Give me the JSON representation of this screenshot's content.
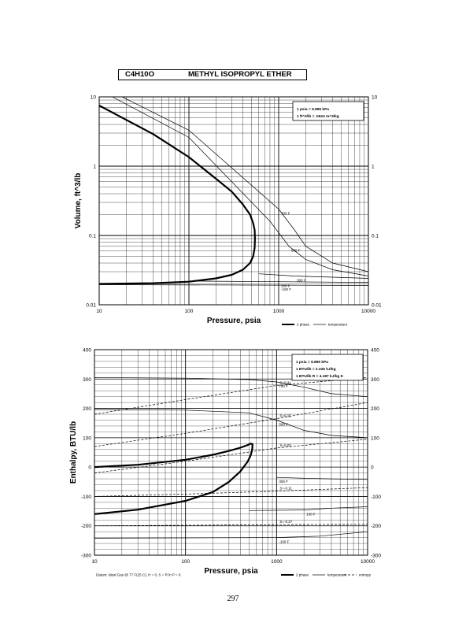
{
  "header": {
    "formula": "C4H10O",
    "name": "METHYL ISOPROPYL ETHER"
  },
  "page_number": "297",
  "chart_data": [
    {
      "type": "line",
      "xlabel": "Pressure, psia",
      "ylabel": "Volume, ft^3/lb",
      "x_scale": "log",
      "y_scale": "log",
      "xlim": [
        10,
        10000
      ],
      "ylim": [
        0.01,
        10
      ],
      "x_ticks": [
        "10",
        "100",
        "1000",
        "10000"
      ],
      "y_ticks": [
        "0.01",
        "0.1",
        "1",
        "10"
      ],
      "y_ticks_right": [
        "0.01",
        "0.1",
        "1",
        "10"
      ],
      "grid": true,
      "conversion_box": [
        "1 psia = 6.895 kPa",
        "1 ft^3/lb = .0624 m^3/kg"
      ],
      "legend": [
        "2 phase",
        "temperature"
      ],
      "two_phase": {
        "name": "2 phase",
        "x": [
          10,
          40,
          100,
          200,
          300,
          400,
          480,
          520,
          540,
          545,
          540,
          520,
          480,
          400,
          300,
          200,
          100,
          40,
          10
        ],
        "y": [
          7.5,
          2.9,
          1.35,
          0.66,
          0.43,
          0.28,
          0.2,
          0.15,
          0.12,
          0.09,
          0.066,
          0.05,
          0.04,
          0.032,
          0.027,
          0.024,
          0.0215,
          0.0205,
          0.02
        ]
      },
      "temperature_series": [
        {
          "name": "700 F",
          "x": [
            18,
            100,
            1000,
            1500,
            2000,
            4000,
            10000
          ],
          "y": [
            10,
            3.3,
            0.24,
            0.12,
            0.07,
            0.04,
            0.03
          ]
        },
        {
          "name": "500 F",
          "x": [
            14,
            100,
            800,
            1300,
            2000,
            4000,
            10000
          ],
          "y": [
            10,
            2.6,
            0.16,
            0.07,
            0.045,
            0.032,
            0.026
          ]
        },
        {
          "name": "300 F",
          "x": [
            600,
            1500,
            4000,
            10000
          ],
          "y": [
            0.028,
            0.026,
            0.025,
            0.024
          ]
        },
        {
          "name": "100 F",
          "x": [
            100,
            1000,
            10000
          ],
          "y": [
            0.022,
            0.0215,
            0.021
          ]
        },
        {
          "name": "-100 F",
          "x": [
            10,
            1000,
            10000
          ],
          "y": [
            0.0195,
            0.0192,
            0.019
          ]
        }
      ]
    },
    {
      "type": "line",
      "xlabel": "Pressure, psia",
      "ylabel": "Enthalpy, BTU/lb",
      "x_scale": "log",
      "xlim": [
        10,
        10000
      ],
      "ylim": [
        -300,
        400
      ],
      "x_ticks": [
        "10",
        "100",
        "1000",
        "10000"
      ],
      "y_ticks": [
        "-300",
        "-200",
        "-100",
        "0",
        "100",
        "200",
        "300",
        "400"
      ],
      "grid": true,
      "conversion_box": [
        "1 psia = 6.895 kPa",
        "1 BTU/lb = 2.326 kJ/kg",
        "1 BTU/lb R = 4.187 kJ/kg K"
      ],
      "legend": [
        "2 phase",
        "temperature",
        "entropy"
      ],
      "footnote": "Datum: Ideal Gas @ 77 F(25 C), H = 0, S = R ln P = 0",
      "two_phase": {
        "name": "2 phase",
        "x": [
          10,
          30,
          100,
          200,
          300,
          400,
          480,
          520,
          545,
          540,
          520,
          480,
          400,
          300,
          200,
          100,
          30,
          10
        ],
        "y": [
          0,
          8,
          25,
          42,
          55,
          66,
          75,
          80,
          78,
          60,
          40,
          18,
          -15,
          -50,
          -85,
          -115,
          -145,
          -160
        ]
      },
      "temperature_series": [
        {
          "name": "700 F",
          "x": [
            10,
            100,
            500,
            1000,
            2000,
            4000,
            10000
          ],
          "y": [
            305,
            303,
            298,
            290,
            272,
            250,
            240
          ]
        },
        {
          "name": "500 F",
          "x": [
            10,
            100,
            500,
            1000,
            2000,
            4000,
            10000
          ],
          "y": [
            196,
            194,
            185,
            160,
            125,
            108,
            100
          ]
        },
        {
          "name": "300 F",
          "x": [
            1000,
            2000,
            4000,
            10000
          ],
          "y": [
            -35,
            -38,
            -40,
            -42
          ]
        },
        {
          "name": "100 F",
          "x": [
            500,
            2000,
            4000,
            10000
          ],
          "y": [
            -148,
            -146,
            -140,
            -135
          ]
        },
        {
          "name": "-100 F",
          "x": [
            10,
            1000,
            3000,
            10000
          ],
          "y": [
            -242,
            -240,
            -235,
            -220
          ]
        }
      ],
      "entropy_series": [
        {
          "name": "S=0.31",
          "x": [
            10,
            100,
            1000,
            10000
          ],
          "y": [
            180,
            230,
            278,
            305
          ]
        },
        {
          "name": "S=0.15",
          "x": [
            10,
            100,
            1000,
            10000
          ],
          "y": [
            70,
            115,
            165,
            220
          ]
        },
        {
          "name": "S=0.03",
          "x": [
            10,
            100,
            1000,
            10000
          ],
          "y": [
            -20,
            20,
            65,
            95
          ]
        },
        {
          "name": "S=-0.11",
          "x": [
            10,
            100,
            1000,
            10000
          ],
          "y": [
            -100,
            -92,
            -82,
            -70
          ]
        },
        {
          "name": "S=-0.27",
          "x": [
            10,
            100,
            1000,
            10000
          ],
          "y": [
            -200,
            -198,
            -196,
            -195
          ]
        }
      ]
    }
  ]
}
